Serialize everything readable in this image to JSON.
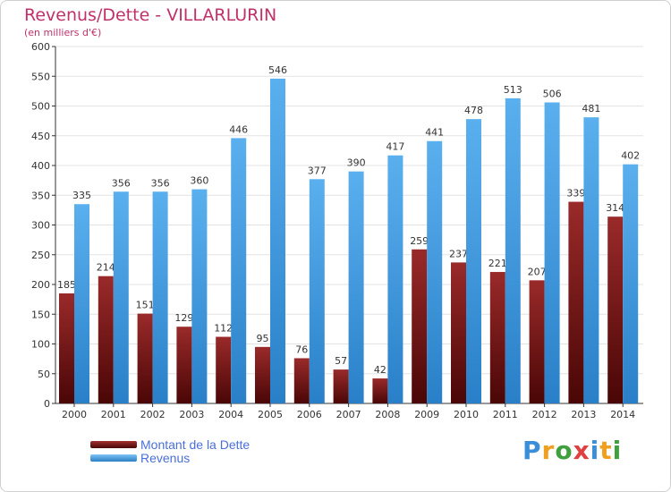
{
  "chart_data": {
    "type": "bar",
    "title": "Revenus/Dette - VILLARLURIN",
    "subtitle": "(en milliers d'€)",
    "xlabel": "",
    "ylabel": "",
    "ylim": [
      0,
      600
    ],
    "yticks": [
      0,
      50,
      100,
      150,
      200,
      250,
      300,
      350,
      400,
      450,
      500,
      550,
      600
    ],
    "grid": true,
    "categories": [
      "2000",
      "2001",
      "2002",
      "2003",
      "2004",
      "2005",
      "2006",
      "2007",
      "2008",
      "2009",
      "2010",
      "2011",
      "2012",
      "2013",
      "2014"
    ],
    "series": [
      {
        "name": "Montant de la Dette",
        "color": "#7a1a1a",
        "values": [
          185,
          214,
          151,
          129,
          112,
          95,
          76,
          57,
          42,
          259,
          237,
          221,
          207,
          339,
          314
        ]
      },
      {
        "name": "Revenus",
        "color": "#4aa3e6",
        "values": [
          335,
          356,
          356,
          360,
          446,
          546,
          377,
          390,
          417,
          441,
          478,
          513,
          506,
          481,
          402
        ]
      }
    ],
    "legend_position": "bottom-left"
  },
  "logo": {
    "text": "Proxiti",
    "letters": [
      "P",
      "r",
      "o",
      "x",
      "i",
      "t",
      "i"
    ],
    "colors": [
      "#3a8fd8",
      "#f0a020",
      "#40a040",
      "#e04040",
      "#3a8fd8",
      "#f0a020",
      "#40a040"
    ]
  }
}
